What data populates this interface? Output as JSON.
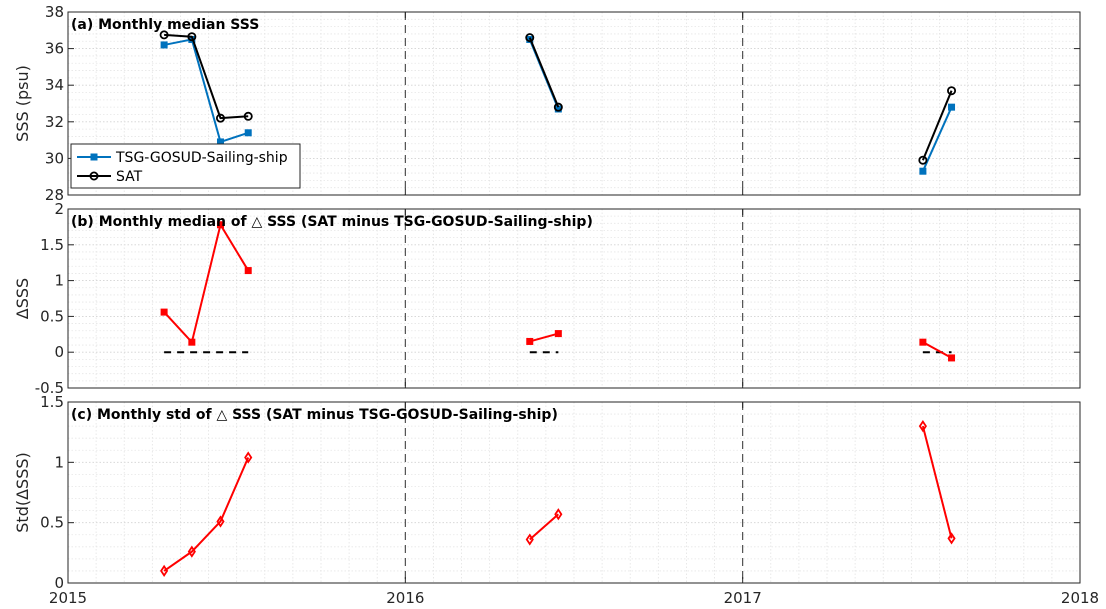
{
  "chart_data": [
    {
      "type": "line",
      "title": "(a) Monthly median SSS",
      "ylabel": "SSS (psu)",
      "xlim": [
        "2015",
        "2018"
      ],
      "ylim": [
        28,
        38
      ],
      "yticks": [
        "28",
        "30",
        "32",
        "34",
        "36",
        "38"
      ],
      "grid": true,
      "legend_position": "bottom-left",
      "year_lines": [
        "2016",
        "2017"
      ],
      "series": [
        {
          "name": "TSG-GOSUD-Sailing-ship",
          "color": "#0072BD",
          "marker": "square",
          "segments": [
            [
              [
                "2015-04-15",
                36.2
              ],
              [
                "2015-05-15",
                36.5
              ],
              [
                "2015-06-15",
                30.9
              ],
              [
                "2015-07-15",
                31.4
              ]
            ],
            [
              [
                "2016-05-15",
                36.5
              ],
              [
                "2016-06-15",
                32.7
              ]
            ],
            [
              [
                "2017-07-15",
                29.3
              ],
              [
                "2017-08-15",
                32.8
              ]
            ]
          ]
        },
        {
          "name": "SAT",
          "color": "#000000",
          "marker": "circle",
          "segments": [
            [
              [
                "2015-04-15",
                36.75
              ],
              [
                "2015-05-15",
                36.65
              ],
              [
                "2015-06-15",
                32.2
              ],
              [
                "2015-07-15",
                32.3
              ]
            ],
            [
              [
                "2016-05-15",
                36.6
              ],
              [
                "2016-06-15",
                32.8
              ]
            ],
            [
              [
                "2017-07-15",
                29.9
              ],
              [
                "2017-08-15",
                33.7
              ]
            ]
          ]
        }
      ]
    },
    {
      "type": "line",
      "title": "(b) Monthly median of △ SSS (SAT minus TSG-GOSUD-Sailing-ship)",
      "ylabel": "ΔSSS",
      "xlim": [
        "2015",
        "2018"
      ],
      "ylim": [
        -0.5,
        2
      ],
      "yticks": [
        "-0.5",
        "0",
        "0.5",
        "1",
        "1.5",
        "2"
      ],
      "grid": true,
      "year_lines": [
        "2016",
        "2017"
      ],
      "series": [
        {
          "color": "#FF0000",
          "marker": "square",
          "segments": [
            [
              [
                "2015-04-15",
                0.56
              ],
              [
                "2015-05-15",
                0.14
              ],
              [
                "2015-06-15",
                1.78
              ],
              [
                "2015-07-15",
                1.14
              ]
            ],
            [
              [
                "2016-05-15",
                0.15
              ],
              [
                "2016-06-15",
                0.26
              ]
            ],
            [
              [
                "2017-07-15",
                0.14
              ],
              [
                "2017-08-15",
                -0.08
              ]
            ]
          ]
        }
      ],
      "zero_reference": [
        [
          "2015-04-15",
          "2015-07-15"
        ],
        [
          "2016-05-15",
          "2016-06-15"
        ],
        [
          "2017-07-15",
          "2017-08-15"
        ]
      ]
    },
    {
      "type": "line",
      "title": "(c) Monthly std of △ SSS (SAT minus TSG-GOSUD-Sailing-ship)",
      "ylabel": "Std(ΔSSS)",
      "xlim": [
        "2015",
        "2018"
      ],
      "ylim": [
        0,
        1.5
      ],
      "yticks": [
        "0",
        "0.5",
        "1",
        "1.5"
      ],
      "xticks": [
        "2015",
        "2016",
        "2017",
        "2018"
      ],
      "grid": true,
      "year_lines": [
        "2016",
        "2017"
      ],
      "series": [
        {
          "color": "#FF0000",
          "marker": "diamond",
          "segments": [
            [
              [
                "2015-04-15",
                0.1
              ],
              [
                "2015-05-15",
                0.26
              ],
              [
                "2015-06-15",
                0.51
              ],
              [
                "2015-07-15",
                1.04
              ]
            ],
            [
              [
                "2016-05-15",
                0.36
              ],
              [
                "2016-06-15",
                0.57
              ]
            ],
            [
              [
                "2017-07-15",
                1.3
              ],
              [
                "2017-08-15",
                0.37
              ]
            ]
          ]
        }
      ]
    }
  ]
}
